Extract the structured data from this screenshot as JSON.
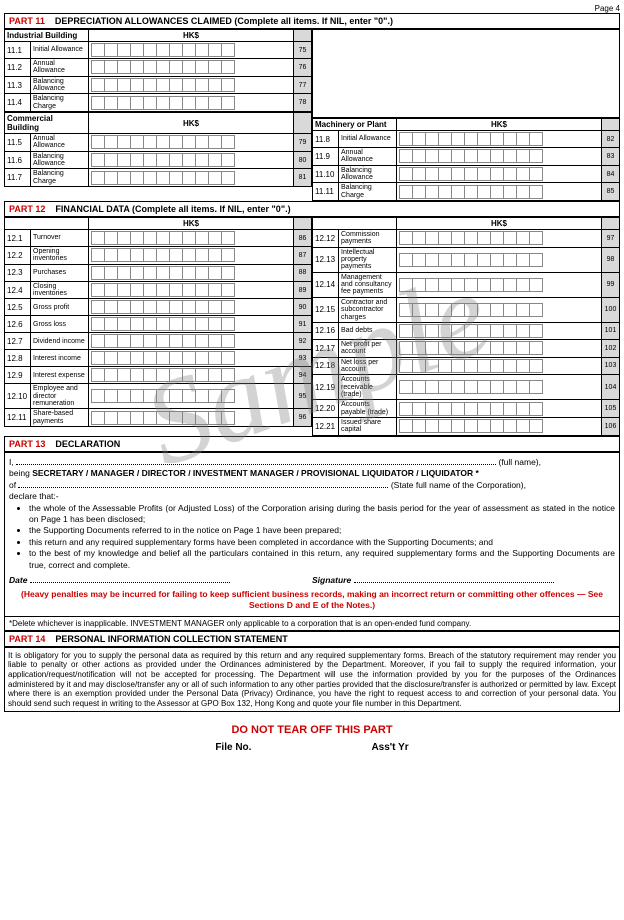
{
  "page_label": "Page 4",
  "watermark": "Sample",
  "part11": {
    "title_prefix": "PART 11",
    "title": "DEPRECIATION ALLOWANCES CLAIMED (Complete all items.  If NIL, enter \"0\".)",
    "hks": "HK$",
    "ind_bldg": "Industrial Building",
    "com_bldg": "Commercial Building",
    "mach": "Machinery or Plant",
    "rows_ind": [
      {
        "n": "11.1",
        "lbl": "Initial Allowance",
        "ref": "75"
      },
      {
        "n": "11.2",
        "lbl": "Annual Allowance",
        "ref": "76"
      },
      {
        "n": "11.3",
        "lbl": "Balancing Allowance",
        "ref": "77"
      },
      {
        "n": "11.4",
        "lbl": "Balancing Charge",
        "ref": "78"
      }
    ],
    "rows_com": [
      {
        "n": "11.5",
        "lbl": "Annual Allowance",
        "ref": "79"
      },
      {
        "n": "11.6",
        "lbl": "Balancing Allowance",
        "ref": "80"
      },
      {
        "n": "11.7",
        "lbl": "Balancing Charge",
        "ref": "81"
      }
    ],
    "rows_mach": [
      {
        "n": "11.8",
        "lbl": "Initial Allowance",
        "ref": "82"
      },
      {
        "n": "11.9",
        "lbl": "Annual Allowance",
        "ref": "83"
      },
      {
        "n": "11.10",
        "lbl": "Balancing Allowance",
        "ref": "84"
      },
      {
        "n": "11.11",
        "lbl": "Balancing Charge",
        "ref": "85"
      }
    ]
  },
  "part12": {
    "title_prefix": "PART 12",
    "title": "FINANCIAL DATA (Complete all items.  If NIL, enter \"0\".)",
    "hks": "HK$",
    "left": [
      {
        "n": "12.1",
        "lbl": "Turnover",
        "ref": "86"
      },
      {
        "n": "12.2",
        "lbl": "Opening inventories",
        "ref": "87"
      },
      {
        "n": "12.3",
        "lbl": "Purchases",
        "ref": "88"
      },
      {
        "n": "12.4",
        "lbl": "Closing inventories",
        "ref": "89"
      },
      {
        "n": "12.5",
        "lbl": "Gross profit",
        "ref": "90"
      },
      {
        "n": "12.6",
        "lbl": "Gross loss",
        "ref": "91"
      },
      {
        "n": "12.7",
        "lbl": "Dividend income",
        "ref": "92"
      },
      {
        "n": "12.8",
        "lbl": "Interest income",
        "ref": "93"
      },
      {
        "n": "12.9",
        "lbl": "Interest expense",
        "ref": "94"
      },
      {
        "n": "12.10",
        "lbl": "Employee and director remuneration",
        "ref": "95"
      },
      {
        "n": "12.11",
        "lbl": "Share-based payments",
        "ref": "96"
      }
    ],
    "right": [
      {
        "n": "12.12",
        "lbl": "Commission payments",
        "ref": "97"
      },
      {
        "n": "12.13",
        "lbl": "Intellectual property payments",
        "ref": "98"
      },
      {
        "n": "12.14",
        "lbl": "Management and consultancy fee payments",
        "ref": "99"
      },
      {
        "n": "12.15",
        "lbl": "Contractor and subcontractor charges",
        "ref": "100"
      },
      {
        "n": "12.16",
        "lbl": "Bad debts",
        "ref": "101"
      },
      {
        "n": "12.17",
        "lbl": "Net profit per account",
        "ref": "102"
      },
      {
        "n": "12.18",
        "lbl": "Net loss per account",
        "ref": "103"
      },
      {
        "n": "12.19",
        "lbl": "Accounts receivable (trade)",
        "ref": "104"
      },
      {
        "n": "12.20",
        "lbl": "Accounts payable (trade)",
        "ref": "105"
      },
      {
        "n": "12.21",
        "lbl": "Issued share capital",
        "ref": "106"
      }
    ]
  },
  "part13": {
    "title_prefix": "PART 13",
    "title": "DECLARATION",
    "i": "I,",
    "fullname": "(full name),",
    "being": "being",
    "roles": "SECRETARY / MANAGER / DIRECTOR / INVESTMENT MANAGER / PROVISIONAL LIQUIDATOR / LIQUIDATOR *",
    "of": "of",
    "state_corp": "(State full name of the Corporation),",
    "declare": "declare that:-",
    "b1": "the whole of the Assessable Profits (or Adjusted Loss) of the Corporation arising during the basis period for the year of assessment as stated in the notice on Page 1 has been disclosed;",
    "b2": "the Supporting Documents referred to in the notice on Page 1 have been prepared;",
    "b3": "this return and any required supplementary forms have been completed in accordance with the Supporting Documents; and",
    "b4": "to the best of my knowledge and belief all the particulars contained in this return, any required supplementary forms and the Supporting Documents are true, correct and complete.",
    "date": "Date",
    "sig": "Signature",
    "warn": "(Heavy penalties may be incurred for failing to keep sufficient business records, making an incorrect return or committing other offences  —  See Sections D and E of the Notes.)",
    "footnote": "*Delete whichever is inapplicable. INVESTMENT MANAGER only applicable to a corporation that is an open-ended fund company."
  },
  "part14": {
    "title_prefix": "PART 14",
    "title": "PERSONAL INFORMATION COLLECTION STATEMENT",
    "body": "It is obligatory for you to supply the personal data as required by this return and any required supplementary forms. Breach of the statutory requirement may render you liable to penalty or other actions as provided under the Ordinances administered by the Department. Moreover, if you fail to supply the required information, your application/request/notification will not be accepted for processing. The Department will use the information provided by you for the purposes of the Ordinances administered by it and may disclose/transfer any or all of such information to any other parties provided that the disclosure/transfer is authorized or permitted by law.  Except where there is an exemption provided under the Personal Data (Privacy) Ordinance, you have the right to request access to and correction of your personal data. You should send such request in writing to the Assessor at GPO Box 132, Hong Kong and quote your file number in this Department."
  },
  "tearoff": "DO NOT TEAR OFF THIS PART",
  "file_no": "File No.",
  "asst_yr": "Ass't Yr",
  "box_count": 11,
  "colors": {
    "red": "#c00000",
    "grey": "#d9d9d9"
  }
}
